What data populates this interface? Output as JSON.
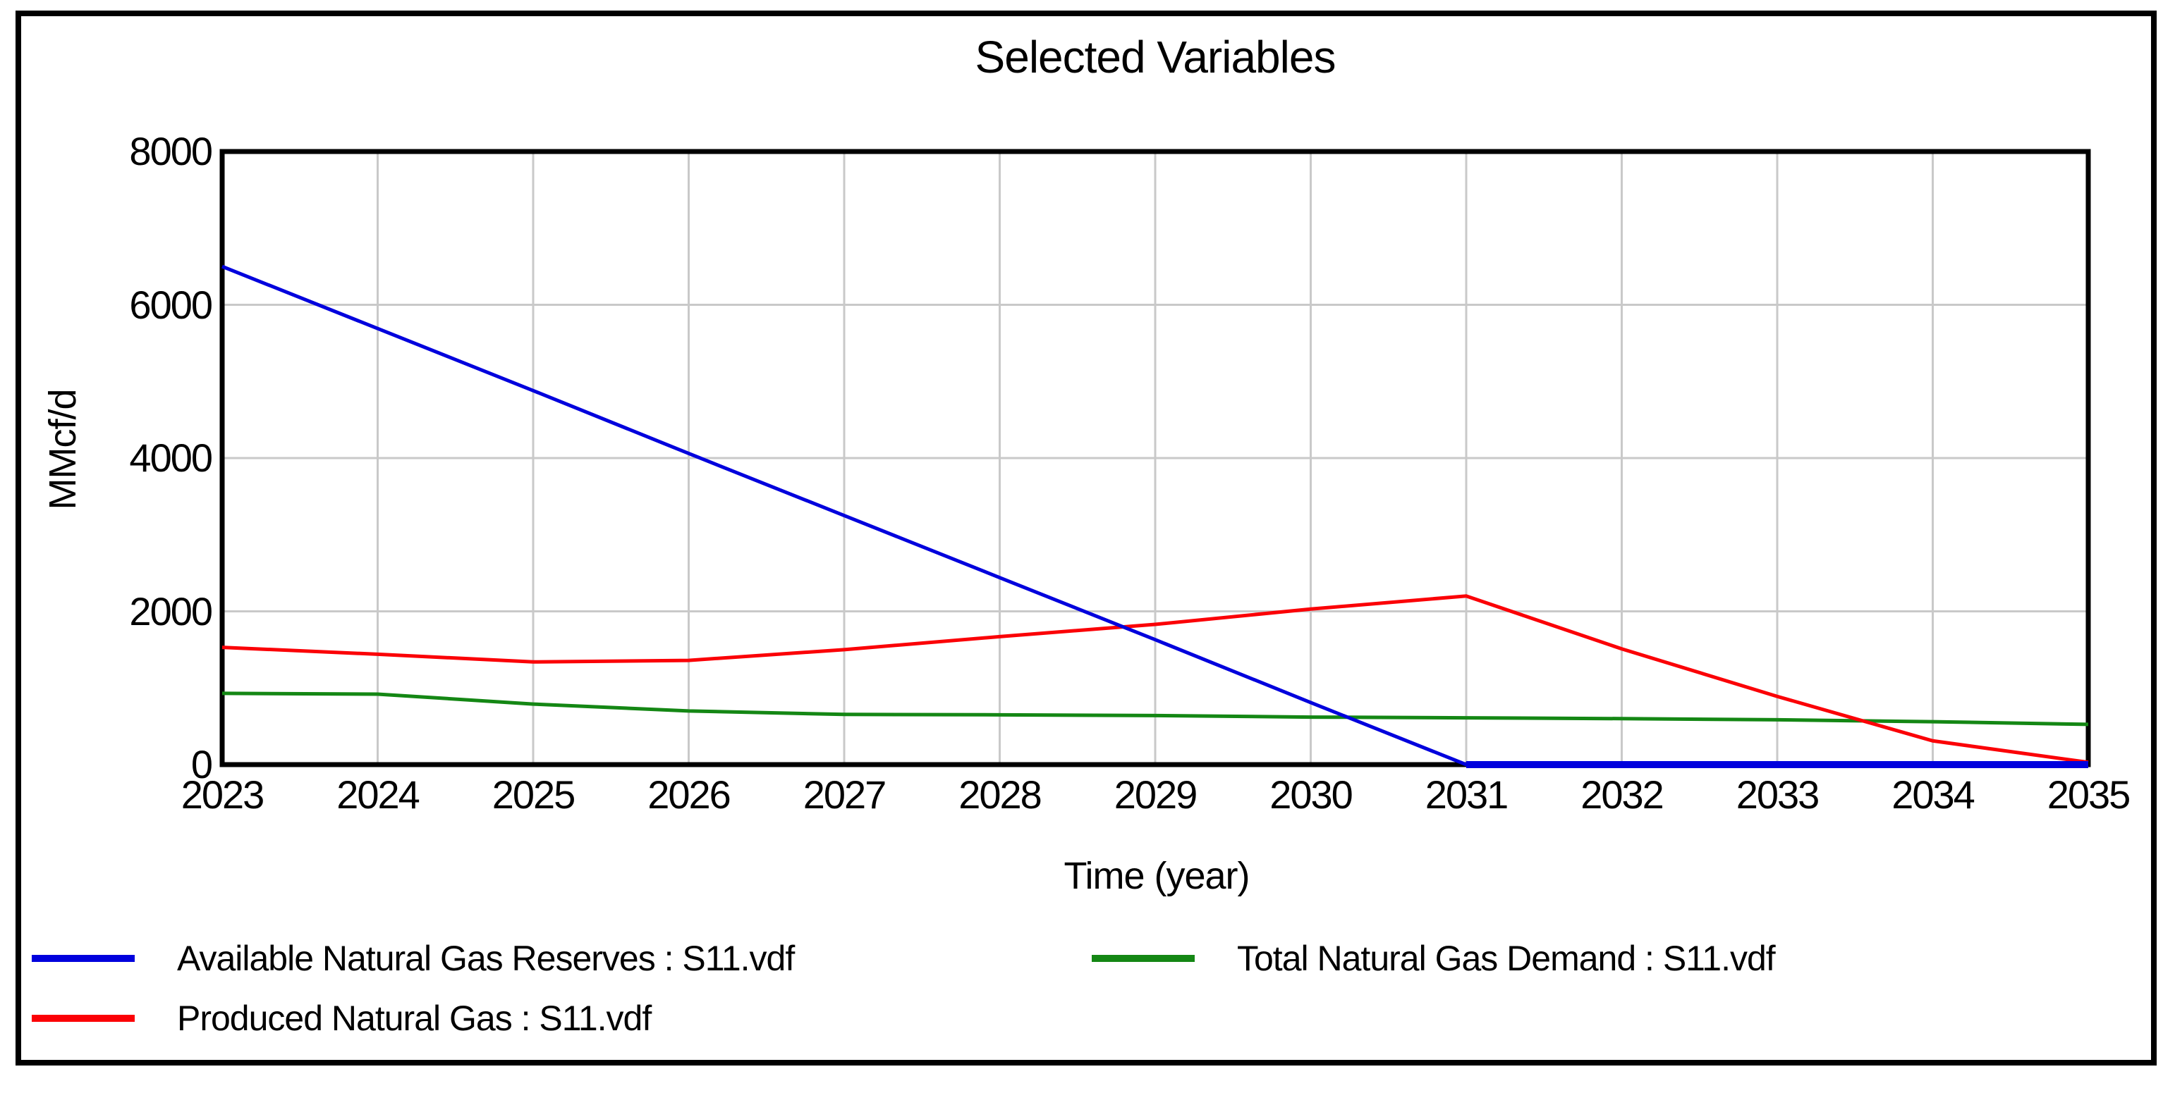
{
  "chart_data": {
    "type": "line",
    "title": "Selected Variables",
    "xlabel": "Time (year)",
    "ylabel": "MMcf/d",
    "x": [
      2023,
      2024,
      2025,
      2026,
      2027,
      2028,
      2029,
      2030,
      2031,
      2032,
      2033,
      2034,
      2035
    ],
    "xlim": [
      2023,
      2035
    ],
    "ylim": [
      0,
      8000
    ],
    "y_ticks": [
      0,
      2000,
      4000,
      6000,
      8000
    ],
    "grid": true,
    "grid_color": "#c9c9c9",
    "axis_color": "#000000",
    "legend_position": "bottom-left, two columns",
    "series": [
      {
        "name": "Available Natural Gas Reserves : S11.vdf",
        "color": "#0000dd",
        "values": [
          6500,
          5690,
          4880,
          4060,
          3250,
          2440,
          1630,
          810,
          0,
          0,
          0,
          0,
          0
        ]
      },
      {
        "name": "Produced Natural Gas : S11.vdf",
        "color": "#fb0006",
        "values": [
          1530,
          1440,
          1340,
          1360,
          1500,
          1670,
          1830,
          2030,
          2200,
          1510,
          890,
          310,
          30
        ]
      },
      {
        "name": "Total Natural Gas Demand : S11.vdf",
        "color": "#148714",
        "values": [
          930,
          920,
          790,
          700,
          655,
          650,
          640,
          620,
          610,
          600,
          585,
          560,
          525
        ]
      }
    ]
  }
}
